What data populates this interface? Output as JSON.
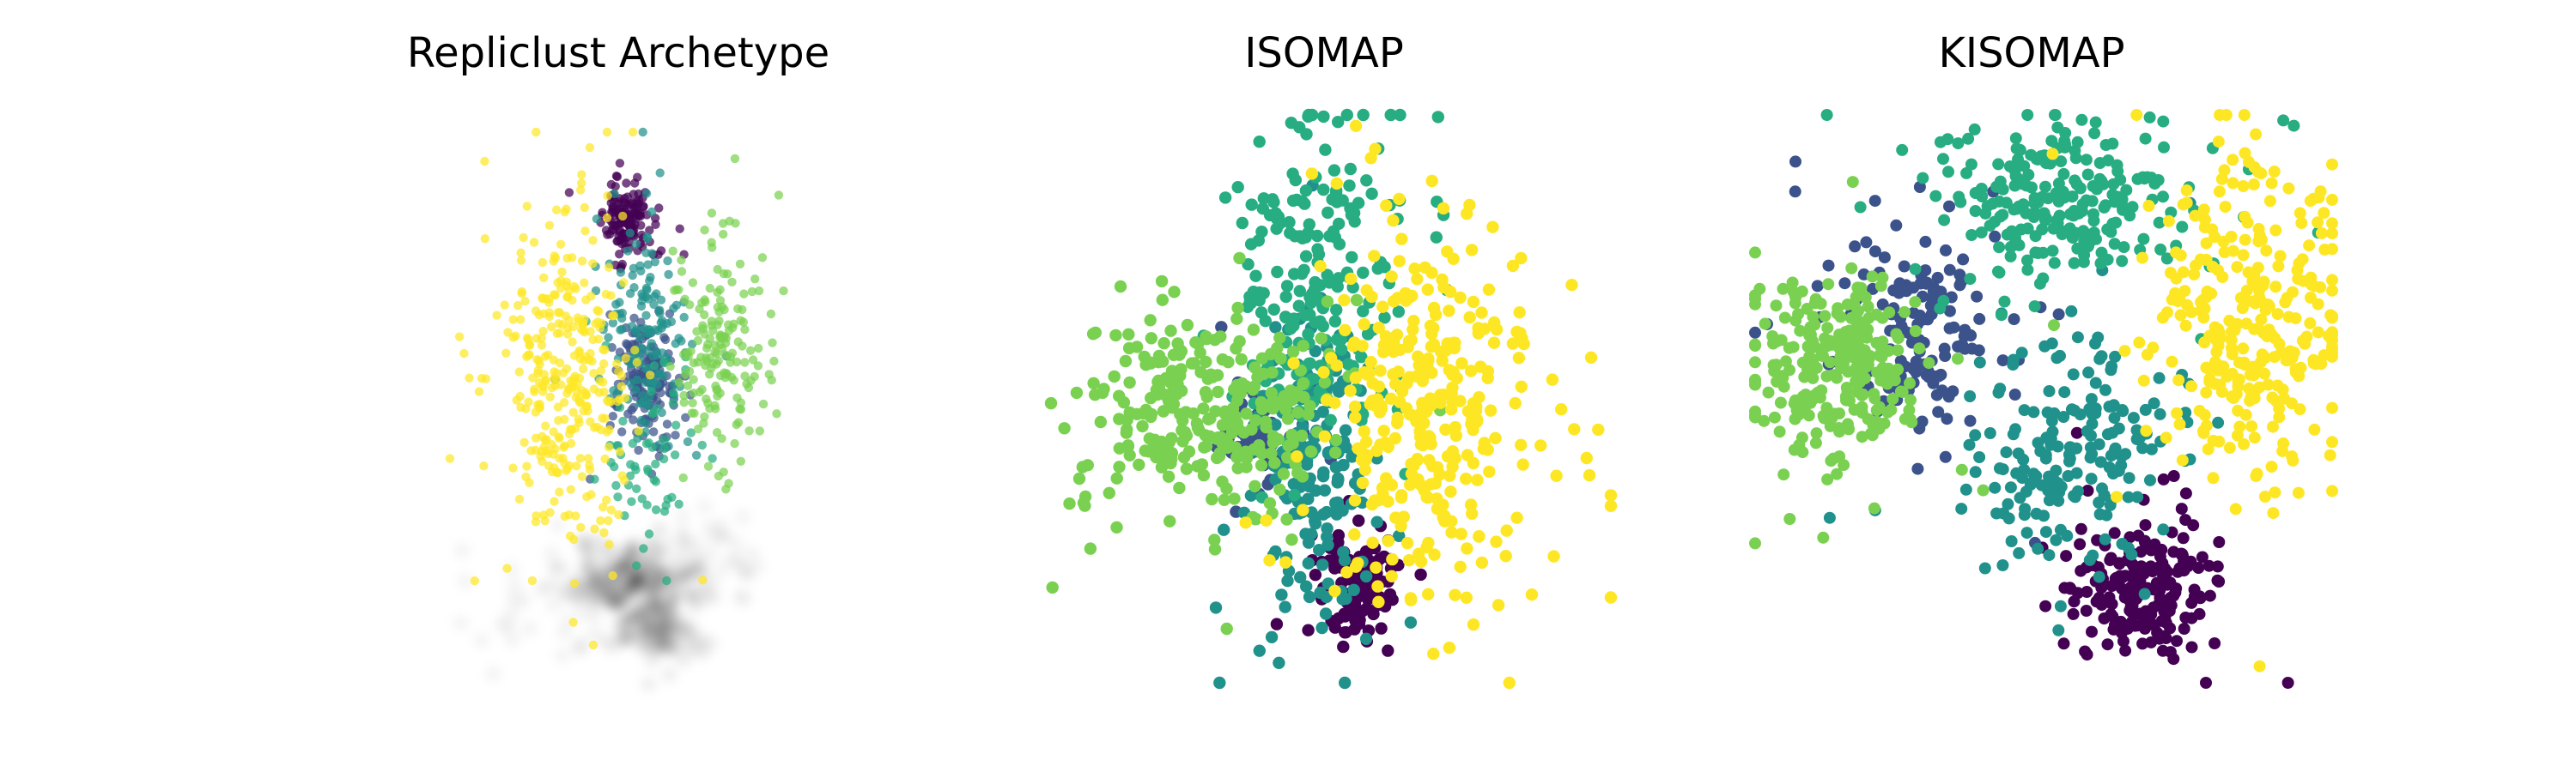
{
  "chart_data": [
    {
      "type": "scatter",
      "title": "Repliclust Archetype",
      "axes_visible": false,
      "grid": false,
      "legend": "none",
      "colormap": "viridis",
      "shadow": "gray density blobs below the clusters",
      "xlim": [
        0,
        10
      ],
      "ylim": [
        0,
        10
      ],
      "clusters": [
        {
          "color": "#440154",
          "center": [
            4.56,
            8.39
          ],
          "spread": [
            0.32,
            0.32
          ],
          "count": 140
        },
        {
          "color": "#3b528b",
          "center": [
            5.1,
            5.47
          ],
          "spread": [
            0.42,
            0.55
          ],
          "count": 160
        },
        {
          "color": "#21918c",
          "center": [
            5.01,
            6.5
          ],
          "spread": [
            0.5,
            1.1
          ],
          "count": 140
        },
        {
          "color": "#27ad81",
          "center": [
            4.99,
            4.16
          ],
          "spread": [
            0.55,
            0.9
          ],
          "count": 60
        },
        {
          "color": "#7ad151",
          "center": [
            6.92,
            5.97
          ],
          "spread": [
            0.6,
            0.95
          ],
          "count": 170
        },
        {
          "color": "#fde725",
          "center": [
            2.98,
            5.59
          ],
          "spread": [
            0.82,
            1.45
          ],
          "count": 330
        }
      ],
      "shadow_blobs": [
        {
          "center": [
            4.7,
            1.92
          ],
          "spread": [
            0.75,
            0.28
          ],
          "weight": 1.0
        },
        {
          "center": [
            5.25,
            1.05
          ],
          "spread": [
            0.55,
            0.28
          ],
          "weight": 0.7
        },
        {
          "center": [
            3.2,
            1.6
          ],
          "spread": [
            1.1,
            0.5
          ],
          "weight": 0.35
        },
        {
          "center": [
            6.6,
            2.25
          ],
          "spread": [
            0.9,
            0.45
          ],
          "weight": 0.35
        }
      ]
    },
    {
      "type": "scatter",
      "title": "ISOMAP",
      "axes_visible": false,
      "grid": false,
      "legend": "none",
      "colormap": "viridis",
      "xlim": [
        0,
        10
      ],
      "ylim": [
        0,
        10
      ],
      "clusters": [
        {
          "color": "#440154",
          "center": [
            5.51,
            1.85
          ],
          "spread": [
            0.42,
            0.55
          ],
          "count": 110
        },
        {
          "color": "#3b528b",
          "center": [
            3.7,
            4.3
          ],
          "spread": [
            0.45,
            0.55
          ],
          "count": 60
        },
        {
          "color": "#21918c",
          "center": [
            4.67,
            3.65
          ],
          "spread": [
            0.55,
            1.5
          ],
          "count": 180
        },
        {
          "color": "#27ad81",
          "center": [
            4.73,
            6.87
          ],
          "spread": [
            0.65,
            1.45
          ],
          "count": 210
        },
        {
          "color": "#7ad151",
          "center": [
            2.9,
            4.74
          ],
          "spread": [
            1.05,
            0.95
          ],
          "count": 300
        },
        {
          "color": "#fde725",
          "center": [
            6.68,
            4.74
          ],
          "spread": [
            0.9,
            1.65
          ],
          "count": 330
        }
      ]
    },
    {
      "type": "scatter",
      "title": "KISOMAP",
      "axes_visible": false,
      "grid": false,
      "legend": "none",
      "colormap": "viridis",
      "xlim": [
        0,
        10
      ],
      "ylim": [
        0,
        10
      ],
      "clusters": [
        {
          "color": "#440154",
          "center": [
            6.68,
            1.78
          ],
          "spread": [
            0.58,
            0.6
          ],
          "count": 200
        },
        {
          "color": "#3b528b",
          "center": [
            2.88,
            6.24
          ],
          "spread": [
            0.85,
            0.95
          ],
          "count": 150
        },
        {
          "color": "#21918c",
          "center": [
            5.57,
            4.0
          ],
          "spread": [
            0.88,
            1.05
          ],
          "count": 190
        },
        {
          "color": "#27ad81",
          "center": [
            5.25,
            8.33
          ],
          "spread": [
            1.1,
            0.65
          ],
          "count": 240
        },
        {
          "color": "#7ad151",
          "center": [
            1.44,
            5.51
          ],
          "spread": [
            0.75,
            0.8
          ],
          "count": 260
        },
        {
          "color": "#fde725",
          "center": [
            8.49,
            6.19
          ],
          "spread": [
            0.8,
            1.45
          ],
          "count": 300
        }
      ]
    }
  ]
}
